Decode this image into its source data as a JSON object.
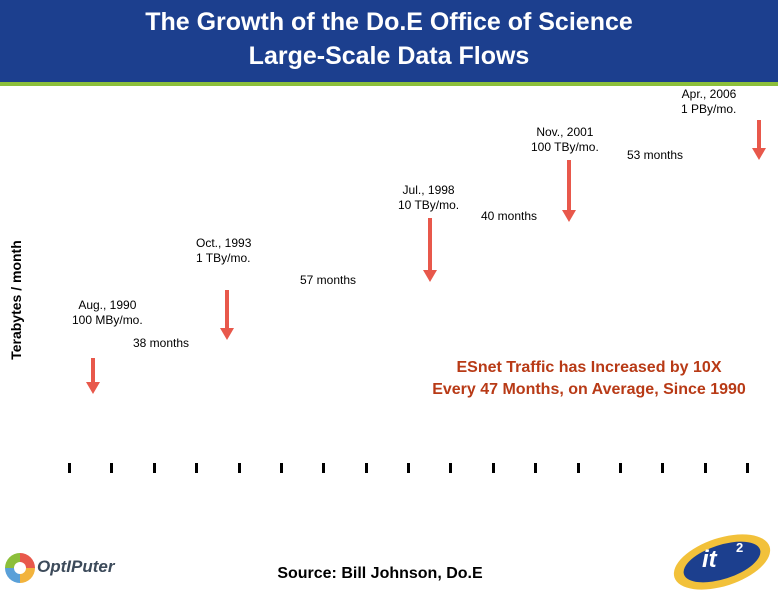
{
  "header": {
    "title_line1": "The Growth of the Do.E Office of Science",
    "title_line2": "Large-Scale Data Flows"
  },
  "chart_data": {
    "type": "line",
    "ylabel": "Terabytes / month",
    "yscale": "log",
    "milestones": [
      {
        "date_line": "Aug., 1990",
        "volume_line": "100 MBy/mo.",
        "date": "1990-08",
        "terabytes_per_month": 0.1
      },
      {
        "date_line": "Oct., 1993",
        "volume_line": "1 TBy/mo.",
        "date": "1993-10",
        "terabytes_per_month": 1
      },
      {
        "date_line": "Jul., 1998",
        "volume_line": "10 TBy/mo.",
        "date": "1998-07",
        "terabytes_per_month": 10
      },
      {
        "date_line": "Nov., 2001",
        "volume_line": "100 TBy/mo.",
        "date": "2001-11",
        "terabytes_per_month": 100
      },
      {
        "date_line": "Apr., 2006",
        "volume_line": "1 PBy/mo.",
        "date": "2006-04",
        "terabytes_per_month": 1000
      }
    ],
    "intervals": [
      "38 months",
      "57 months",
      "40 months",
      "53 months"
    ],
    "x_tick_count": 17,
    "arrow_color": "#e8584b"
  },
  "callout": {
    "line1": "ESnet Traffic has Increased by 10X",
    "line2": "Every 47 Months, on Average, Since 1990",
    "color": "#b83a16"
  },
  "source": "Source: Bill Johnson, Do.E",
  "logos": {
    "left_name": "OptIPuter",
    "right_name": "it",
    "right_superscript": "2"
  }
}
